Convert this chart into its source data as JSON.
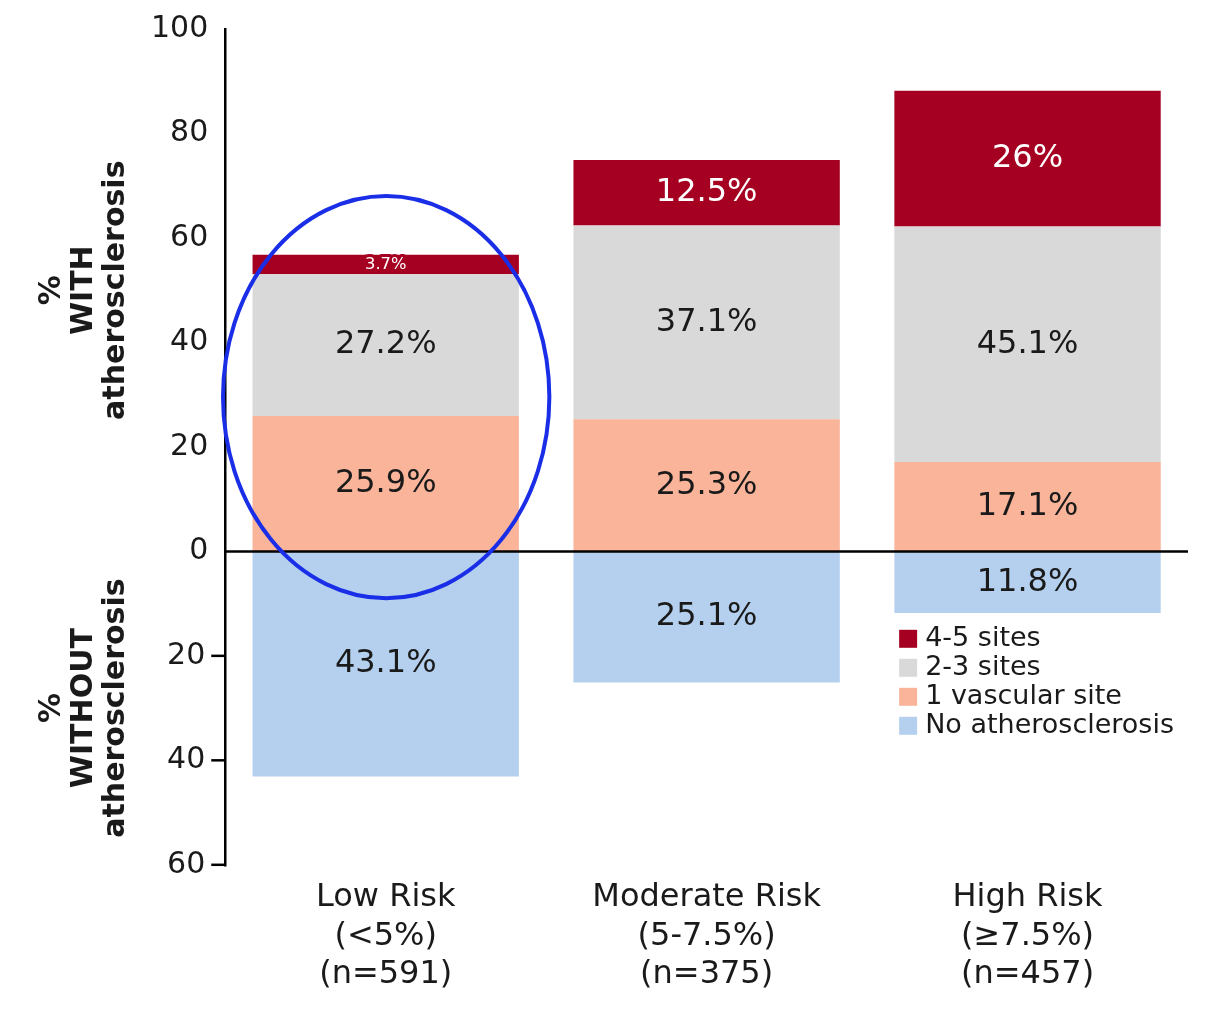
{
  "chart_data": {
    "type": "bar",
    "stacked": true,
    "ylabel": "% WITH atherosclerosis",
    "annotations": [
      "% WITHOUT atherosclerosis"
    ],
    "categories": [
      "Low Risk\n(<5%)\n(n=591)",
      "Moderate Risk\n(5-7.5%)\n(n=375)",
      "High Risk\n(≥7.5%)\n(n=457)"
    ],
    "series": [
      {
        "name": "No atherosclerosis",
        "color": "#b4d0ee",
        "axis": "y2",
        "values": [
          43.1,
          25.1,
          11.8
        ],
        "value_labels": [
          "43.1%",
          "25.1%",
          "11.8%"
        ]
      },
      {
        "name": "1 vascular site",
        "color": "#f9b49a",
        "values": [
          25.9,
          25.3,
          17.1
        ],
        "value_labels": [
          "25.9%",
          "25.3%",
          "17.1%"
        ]
      },
      {
        "name": "2-3 sites",
        "color": "#d9d9d9",
        "values": [
          27.2,
          37.1,
          45.1
        ],
        "value_labels": [
          "27.2%",
          "37.1%",
          "45.1%"
        ]
      },
      {
        "name": "4-5 sites",
        "color": "#a50021",
        "values": [
          3.7,
          12.5,
          26
        ],
        "value_labels": [
          "3.7%",
          "12.5%",
          "26%"
        ]
      }
    ],
    "ylim": [
      -60,
      100
    ],
    "yticks": [
      0,
      20,
      40,
      60,
      80,
      100
    ],
    "y2lim": [
      60,
      -100
    ],
    "y2ticks": [
      20,
      40,
      60
    ],
    "ref_lines": [
      {
        "axis": "y",
        "value": 0,
        "color": "#000000"
      }
    ],
    "grid": false,
    "legend": "bottom right"
  }
}
